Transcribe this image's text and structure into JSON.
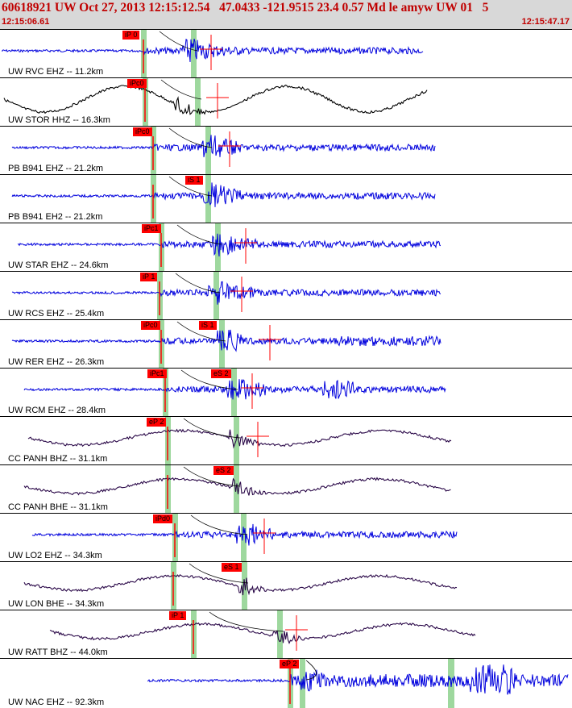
{
  "header": {
    "title": "60618921 UW Oct 27, 2013 12:15:12.54   47.0433 -121.9515 23.4 0.57 Md le amyw UW 01   5",
    "time_start": "12:15:06.61",
    "time_end": "12:15:47.17"
  },
  "colors": {
    "header_bg": "#d8d8d8",
    "header_text": "#c00000",
    "trace_blue": "#0000dd",
    "trace_black": "#000000",
    "trace_purple": "#2a0848",
    "pick_red": "#ff0000",
    "pick_window": "#9ed89e"
  },
  "traces": [
    {
      "station": "UW RVC EHZ -- 11.2km",
      "pick1": "iP 0",
      "pick2": "",
      "color": "blue",
      "style": "hf"
    },
    {
      "station": "UW STOR HHZ -- 16.3km",
      "pick1": "iPc0",
      "pick2": "",
      "color": "black",
      "style": "lp"
    },
    {
      "station": "PB B941 EHZ -- 21.2km",
      "pick1": "iPc0",
      "pick2": "",
      "color": "blue",
      "style": "hf"
    },
    {
      "station": "PB B941 EH2 -- 21.2km",
      "pick1": "iS 1",
      "pick2": "",
      "color": "blue",
      "style": "hf"
    },
    {
      "station": "UW STAR EHZ -- 24.6km",
      "pick1": "iPc1",
      "pick2": "",
      "color": "blue",
      "style": "hf"
    },
    {
      "station": "UW RCS EHZ -- 25.4km",
      "pick1": "iP 1",
      "pick2": "",
      "color": "blue",
      "style": "hf"
    },
    {
      "station": "UW RER EHZ -- 26.3km",
      "pick1": "iPc0",
      "pick2": "iS 1",
      "color": "blue",
      "style": "hf"
    },
    {
      "station": "UW RCM EHZ -- 28.4km",
      "pick1": "iPc1",
      "pick2": "eS 2",
      "color": "blue",
      "style": "hf"
    },
    {
      "station": "CC PANH BHZ -- 31.1km",
      "pick1": "eP 2",
      "pick2": "",
      "color": "purple",
      "style": "lp"
    },
    {
      "station": "CC PANH BHE -- 31.1km",
      "pick1": "eS 2",
      "pick2": "",
      "color": "purple",
      "style": "lp"
    },
    {
      "station": "UW LO2 EHZ -- 34.3km",
      "pick1": "iPd0",
      "pick2": "",
      "color": "blue",
      "style": "hf"
    },
    {
      "station": "UW LON BHE -- 34.3km",
      "pick1": "eS 1",
      "pick2": "",
      "color": "purple",
      "style": "lp"
    },
    {
      "station": "UW RATT BHZ -- 44.0km",
      "pick1": "iP 1",
      "pick2": "",
      "color": "purple",
      "style": "lp"
    },
    {
      "station": "UW NAC EHZ -- 92.3km",
      "pick1": "eP 2",
      "pick2": "",
      "color": "blue",
      "style": "hf"
    }
  ]
}
